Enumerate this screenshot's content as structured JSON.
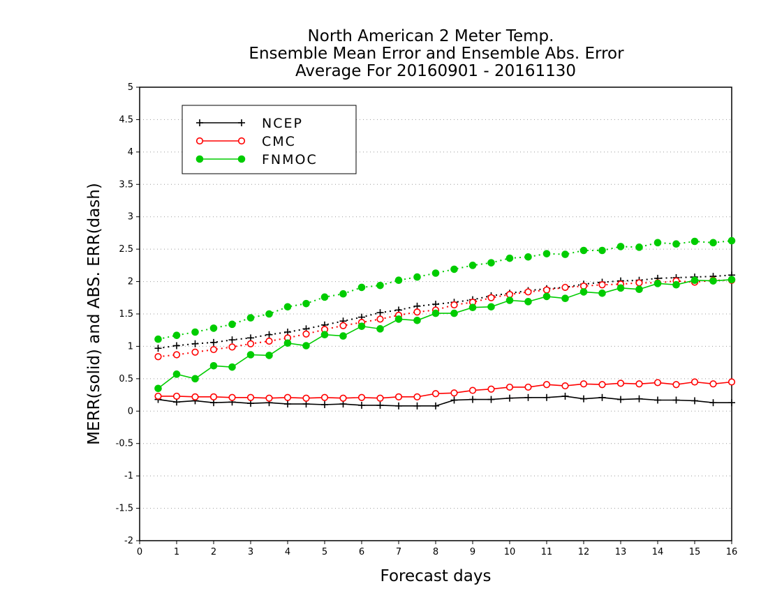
{
  "chart_data": {
    "type": "line",
    "title": [
      "North American 2 Meter Temp.",
      "Ensemble Mean Error and Ensemble Abs. Error",
      "Average For 20160901 - 20161130"
    ],
    "xlabel": "Forecast days",
    "ylabel": "MERR(solid) and ABS. ERR(dash)",
    "xlim": [
      0,
      16
    ],
    "ylim": [
      -2,
      5
    ],
    "x_ticks": [
      "0",
      "1",
      "2",
      "3",
      "4",
      "5",
      "6",
      "7",
      "8",
      "9",
      "10",
      "11",
      "12",
      "13",
      "14",
      "15",
      "16"
    ],
    "y_ticks": [
      "5",
      "4.5",
      "4",
      "3.5",
      "3",
      "2.5",
      "2",
      "1.5",
      "1",
      "0.5",
      "0",
      "-0.5",
      "-1",
      "-1.5",
      "-2"
    ],
    "grid": "horizontal dotted",
    "legend_position": "top-left",
    "x": [
      0.5,
      1,
      1.5,
      2,
      2.5,
      3,
      3.5,
      4,
      4.5,
      5,
      5.5,
      6,
      6.5,
      7,
      7.5,
      8,
      8.5,
      9,
      9.5,
      10,
      10.5,
      11,
      11.5,
      12,
      12.5,
      13,
      13.5,
      14,
      14.5,
      15,
      15.5,
      16
    ],
    "series": [
      {
        "name": "NCEP",
        "color": "#000000",
        "marker": "plus",
        "mean_error": [
          0.18,
          0.14,
          0.16,
          0.13,
          0.14,
          0.12,
          0.13,
          0.11,
          0.11,
          0.1,
          0.11,
          0.09,
          0.09,
          0.08,
          0.08,
          0.08,
          0.17,
          0.18,
          0.18,
          0.2,
          0.21,
          0.21,
          0.23,
          0.19,
          0.21,
          0.18,
          0.19,
          0.17,
          0.17,
          0.16,
          0.13,
          0.13
        ],
        "abs_error": [
          0.97,
          1.01,
          1.04,
          1.06,
          1.1,
          1.13,
          1.18,
          1.22,
          1.27,
          1.33,
          1.39,
          1.45,
          1.52,
          1.56,
          1.62,
          1.65,
          1.68,
          1.72,
          1.78,
          1.82,
          1.86,
          1.89,
          1.91,
          1.96,
          1.99,
          2.01,
          2.02,
          2.05,
          2.06,
          2.07,
          2.08,
          2.1
        ]
      },
      {
        "name": "CMC",
        "color": "#ff0000",
        "marker": "open-circle",
        "mean_error": [
          0.23,
          0.23,
          0.22,
          0.22,
          0.21,
          0.21,
          0.2,
          0.21,
          0.2,
          0.21,
          0.2,
          0.21,
          0.2,
          0.22,
          0.22,
          0.27,
          0.28,
          0.32,
          0.34,
          0.37,
          0.37,
          0.41,
          0.39,
          0.42,
          0.41,
          0.43,
          0.42,
          0.44,
          0.41,
          0.45,
          0.42,
          0.45
        ],
        "abs_error": [
          0.84,
          0.87,
          0.91,
          0.95,
          0.99,
          1.04,
          1.08,
          1.13,
          1.19,
          1.26,
          1.32,
          1.37,
          1.42,
          1.48,
          1.53,
          1.56,
          1.64,
          1.68,
          1.75,
          1.8,
          1.84,
          1.87,
          1.91,
          1.93,
          1.95,
          1.96,
          1.98,
          1.98,
          2.01,
          1.99,
          2.02,
          2.02
        ]
      },
      {
        "name": "FNMOC",
        "color": "#00cc00",
        "marker": "filled-circle",
        "mean_error": [
          0.35,
          0.57,
          0.5,
          0.7,
          0.68,
          0.87,
          0.86,
          1.05,
          1.01,
          1.18,
          1.16,
          1.31,
          1.27,
          1.42,
          1.4,
          1.51,
          1.51,
          1.6,
          1.61,
          1.71,
          1.69,
          1.77,
          1.74,
          1.84,
          1.82,
          1.9,
          1.88,
          1.97,
          1.95,
          2.02,
          2.01,
          2.03
        ],
        "abs_error": [
          1.11,
          1.17,
          1.22,
          1.28,
          1.34,
          1.44,
          1.5,
          1.61,
          1.66,
          1.76,
          1.81,
          1.91,
          1.94,
          2.02,
          2.07,
          2.13,
          2.19,
          2.25,
          2.29,
          2.36,
          2.38,
          2.43,
          2.42,
          2.48,
          2.48,
          2.54,
          2.53,
          2.6,
          2.58,
          2.62,
          2.6,
          2.63
        ]
      }
    ]
  }
}
